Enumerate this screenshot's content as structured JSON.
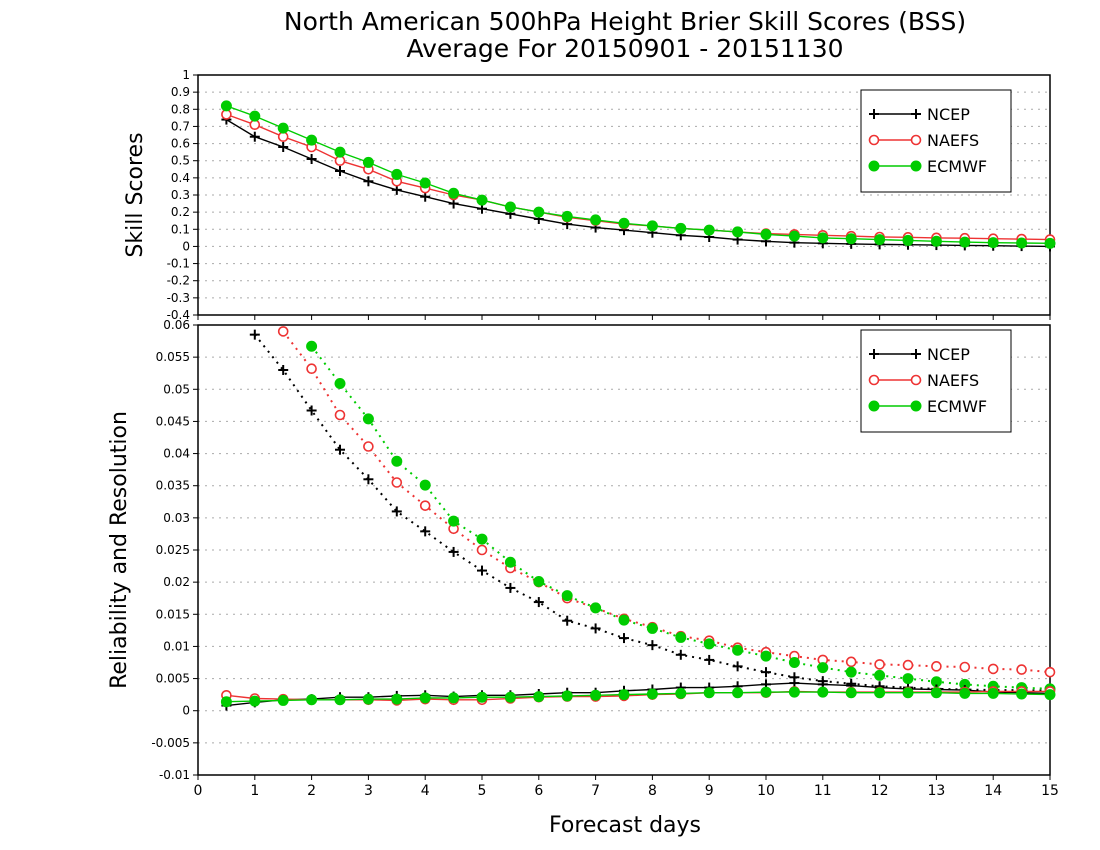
{
  "title_line1": "North American 500hPa Height Brier Skill Scores (BSS)",
  "title_line2": "Average For 20150901 - 20151130",
  "xlabel": "Forecast days",
  "x_ticks": [
    "0",
    "1",
    "2",
    "3",
    "4",
    "5",
    "6",
    "7",
    "8",
    "9",
    "10",
    "11",
    "12",
    "13",
    "14",
    "15"
  ],
  "top_y_ticks": [
    "-0.4",
    "-0.3",
    "-0.2",
    "-0.1",
    "0",
    "0.1",
    "0.2",
    "0.3",
    "0.4",
    "0.5",
    "0.6",
    "0.7",
    "0.8",
    "0.9",
    "1"
  ],
  "bottom_y_ticks": [
    "-0.01",
    "-0.005",
    "0",
    "0.005",
    "0.01",
    "0.015",
    "0.02",
    "0.025",
    "0.03",
    "0.035",
    "0.04",
    "0.045",
    "0.05",
    "0.055",
    "0.06"
  ],
  "colors": {
    "NCEP": "#000000",
    "NAEFS": "#ee3333",
    "ECMWF": "#00cc00",
    "grid": "#aaaaaa"
  },
  "chart_data": [
    {
      "type": "line",
      "ylabel": "Skill Scores",
      "xlim": [
        0,
        15
      ],
      "ylim": [
        -0.4,
        1
      ],
      "grid": true,
      "legend": "top-right",
      "x": [
        0.5,
        1,
        1.5,
        2,
        2.5,
        3,
        3.5,
        4,
        4.5,
        5,
        5.5,
        6,
        6.5,
        7,
        7.5,
        8,
        8.5,
        9,
        9.5,
        10,
        10.5,
        11,
        11.5,
        12,
        12.5,
        13,
        13.5,
        14,
        14.5,
        15
      ],
      "series": [
        {
          "name": "NCEP",
          "marker": "plus",
          "values": [
            0.74,
            0.64,
            0.58,
            0.51,
            0.44,
            0.38,
            0.33,
            0.29,
            0.25,
            0.22,
            0.19,
            0.16,
            0.13,
            0.11,
            0.095,
            0.08,
            0.065,
            0.055,
            0.04,
            0.03,
            0.022,
            0.018,
            0.015,
            0.012,
            0.01,
            0.008,
            0.006,
            0.004,
            0.002,
            0.0
          ]
        },
        {
          "name": "NAEFS",
          "marker": "open-circle",
          "values": [
            0.77,
            0.71,
            0.64,
            0.58,
            0.5,
            0.45,
            0.38,
            0.34,
            0.3,
            0.27,
            0.23,
            0.2,
            0.17,
            0.15,
            0.13,
            0.12,
            0.105,
            0.095,
            0.085,
            0.075,
            0.07,
            0.065,
            0.06,
            0.055,
            0.053,
            0.05,
            0.048,
            0.045,
            0.043,
            0.04
          ]
        },
        {
          "name": "ECMWF",
          "marker": "filled-circle",
          "values": [
            0.82,
            0.76,
            0.69,
            0.62,
            0.55,
            0.49,
            0.42,
            0.37,
            0.31,
            0.27,
            0.23,
            0.2,
            0.175,
            0.155,
            0.135,
            0.12,
            0.105,
            0.095,
            0.085,
            0.07,
            0.06,
            0.05,
            0.045,
            0.04,
            0.035,
            0.03,
            0.025,
            0.022,
            0.02,
            0.018
          ]
        }
      ]
    },
    {
      "type": "line",
      "ylabel": "Reliability and Resolution",
      "xlim": [
        0,
        15
      ],
      "ylim": [
        -0.01,
        0.06
      ],
      "grid": true,
      "legend": "top-right",
      "resolution": {
        "style": "dotted",
        "series": [
          {
            "name": "NCEP",
            "marker": "plus",
            "x": [
              1,
              1.5,
              2,
              2.5,
              3,
              3.5,
              4,
              4.5,
              5,
              5.5,
              6,
              6.5,
              7,
              7.5,
              8,
              8.5,
              9,
              9.5,
              10,
              10.5,
              11,
              11.5,
              12,
              12.5,
              13,
              13.5,
              14,
              14.5,
              15
            ],
            "values": [
              0.0585,
              0.053,
              0.0467,
              0.0406,
              0.036,
              0.031,
              0.0279,
              0.0247,
              0.0218,
              0.0191,
              0.0169,
              0.014,
              0.0128,
              0.0113,
              0.0102,
              0.0087,
              0.0079,
              0.0069,
              0.006,
              0.0052,
              0.0046,
              0.0042,
              0.0038,
              0.0036,
              0.0034,
              0.0033,
              0.0032,
              0.0032,
              0.0031
            ]
          },
          {
            "name": "NAEFS",
            "marker": "open-circle",
            "x": [
              1.5,
              2,
              2.5,
              3,
              3.5,
              4,
              4.5,
              5,
              5.5,
              6,
              6.5,
              7,
              7.5,
              8,
              8.5,
              9,
              9.5,
              10,
              10.5,
              11,
              11.5,
              12,
              12.5,
              13,
              13.5,
              14,
              14.5,
              15
            ],
            "values": [
              0.059,
              0.0532,
              0.046,
              0.0411,
              0.0355,
              0.0319,
              0.0283,
              0.025,
              0.0222,
              0.02,
              0.0175,
              0.016,
              0.0143,
              0.013,
              0.0116,
              0.0109,
              0.0098,
              0.0091,
              0.0085,
              0.0079,
              0.0076,
              0.0072,
              0.0071,
              0.0069,
              0.0068,
              0.0065,
              0.0064,
              0.006
            ]
          },
          {
            "name": "ECMWF",
            "marker": "filled-circle",
            "x": [
              2,
              2.5,
              3,
              3.5,
              4,
              4.5,
              5,
              5.5,
              6,
              6.5,
              7,
              7.5,
              8,
              8.5,
              9,
              9.5,
              10,
              10.5,
              11,
              11.5,
              12,
              12.5,
              13,
              13.5,
              14,
              14.5,
              15
            ],
            "values": [
              0.0567,
              0.0509,
              0.0454,
              0.0388,
              0.0351,
              0.0295,
              0.0267,
              0.0231,
              0.0201,
              0.0179,
              0.016,
              0.0141,
              0.0128,
              0.0114,
              0.0104,
              0.0094,
              0.0085,
              0.0075,
              0.0067,
              0.006,
              0.0055,
              0.005,
              0.0045,
              0.0041,
              0.0038,
              0.0036,
              0.0034
            ]
          }
        ]
      },
      "reliability": {
        "style": "solid",
        "x": [
          0.5,
          1,
          1.5,
          2,
          2.5,
          3,
          3.5,
          4,
          4.5,
          5,
          5.5,
          6,
          6.5,
          7,
          7.5,
          8,
          8.5,
          9,
          9.5,
          10,
          10.5,
          11,
          11.5,
          12,
          12.5,
          13,
          13.5,
          14,
          14.5,
          15
        ],
        "series": [
          {
            "name": "NCEP",
            "marker": "plus",
            "values": [
              0.0008,
              0.0013,
              0.0017,
              0.0018,
              0.0021,
              0.0021,
              0.0023,
              0.0024,
              0.0022,
              0.0024,
              0.0024,
              0.0026,
              0.0028,
              0.0028,
              0.0031,
              0.0033,
              0.0036,
              0.0036,
              0.0038,
              0.0041,
              0.0043,
              0.0041,
              0.0039,
              0.0036,
              0.0034,
              0.0033,
              0.0032,
              0.0029,
              0.0028,
              0.0027
            ]
          },
          {
            "name": "NAEFS",
            "marker": "open-circle",
            "values": [
              0.0024,
              0.0019,
              0.0018,
              0.0017,
              0.0017,
              0.0017,
              0.0016,
              0.0018,
              0.0017,
              0.0017,
              0.0019,
              0.0021,
              0.0022,
              0.0022,
              0.0023,
              0.0025,
              0.0026,
              0.0028,
              0.0028,
              0.0028,
              0.003,
              0.0029,
              0.0029,
              0.0029,
              0.0029,
              0.0029,
              0.0029,
              0.003,
              0.003,
              0.003
            ]
          },
          {
            "name": "ECMWF",
            "marker": "filled-circle",
            "values": [
              0.0014,
              0.0015,
              0.0016,
              0.0017,
              0.0017,
              0.0018,
              0.0018,
              0.002,
              0.002,
              0.0021,
              0.0021,
              0.0022,
              0.0023,
              0.0024,
              0.0025,
              0.0026,
              0.0027,
              0.0028,
              0.0028,
              0.0029,
              0.0029,
              0.0029,
              0.0028,
              0.0028,
              0.0028,
              0.0028,
              0.0027,
              0.0027,
              0.0026,
              0.0025
            ]
          }
        ]
      }
    }
  ]
}
